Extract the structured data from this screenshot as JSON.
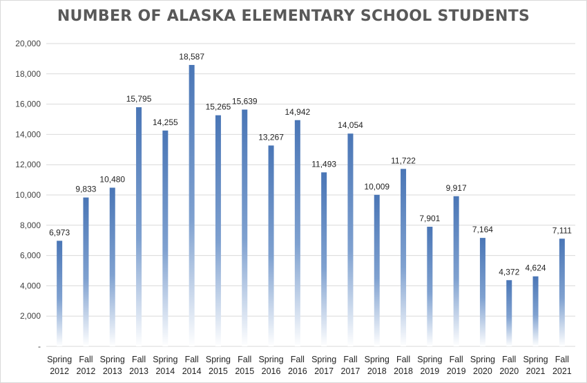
{
  "chart_data": {
    "type": "bar",
    "title": "NUMBER OF ALASKA ELEMENTARY SCHOOL STUDENTS",
    "xlabel": "",
    "ylabel": "",
    "ylim": [
      0,
      20000
    ],
    "y_ticks": [
      0,
      2000,
      4000,
      6000,
      8000,
      10000,
      12000,
      14000,
      16000,
      18000,
      20000
    ],
    "y_tick_labels": [
      "-",
      "2,000",
      "4,000",
      "6,000",
      "8,000",
      "10,000",
      "12,000",
      "14,000",
      "16,000",
      "18,000",
      "20,000"
    ],
    "grid": true,
    "legend": "none",
    "bar_color": "#4f7bba",
    "categories": [
      [
        "Spring",
        "2012"
      ],
      [
        "Fall",
        "2012"
      ],
      [
        "Spring",
        "2013"
      ],
      [
        "Fall",
        "2013"
      ],
      [
        "Spring",
        "2014"
      ],
      [
        "Fall",
        "2014"
      ],
      [
        "Spring",
        "2015"
      ],
      [
        "Fall",
        "2015"
      ],
      [
        "Spring",
        "2016"
      ],
      [
        "Fall",
        "2016"
      ],
      [
        "Spring",
        "2017"
      ],
      [
        "Fall",
        "2017"
      ],
      [
        "Spring",
        "2018"
      ],
      [
        "Fall",
        "2018"
      ],
      [
        "Spring",
        "2019"
      ],
      [
        "Fall",
        "2019"
      ],
      [
        "Spring",
        "2020"
      ],
      [
        "Fall",
        "2020"
      ],
      [
        "Spring",
        "2021"
      ],
      [
        "Fall",
        "2021"
      ]
    ],
    "values": [
      6973,
      9833,
      10480,
      15795,
      14255,
      18587,
      15265,
      15639,
      13267,
      14942,
      11493,
      14054,
      10009,
      11722,
      7901,
      9917,
      7164,
      4372,
      4624,
      7111
    ],
    "data_labels": [
      "6,973",
      "9,833",
      "10,480",
      "15,795",
      "14,255",
      "18,587",
      "15,265",
      "15,639",
      "13,267",
      "14,942",
      "11,493",
      "14,054",
      "10,009",
      "11,722",
      "7,901",
      "9,917",
      "7,164",
      "4,372",
      "4,624",
      "7,111"
    ]
  }
}
